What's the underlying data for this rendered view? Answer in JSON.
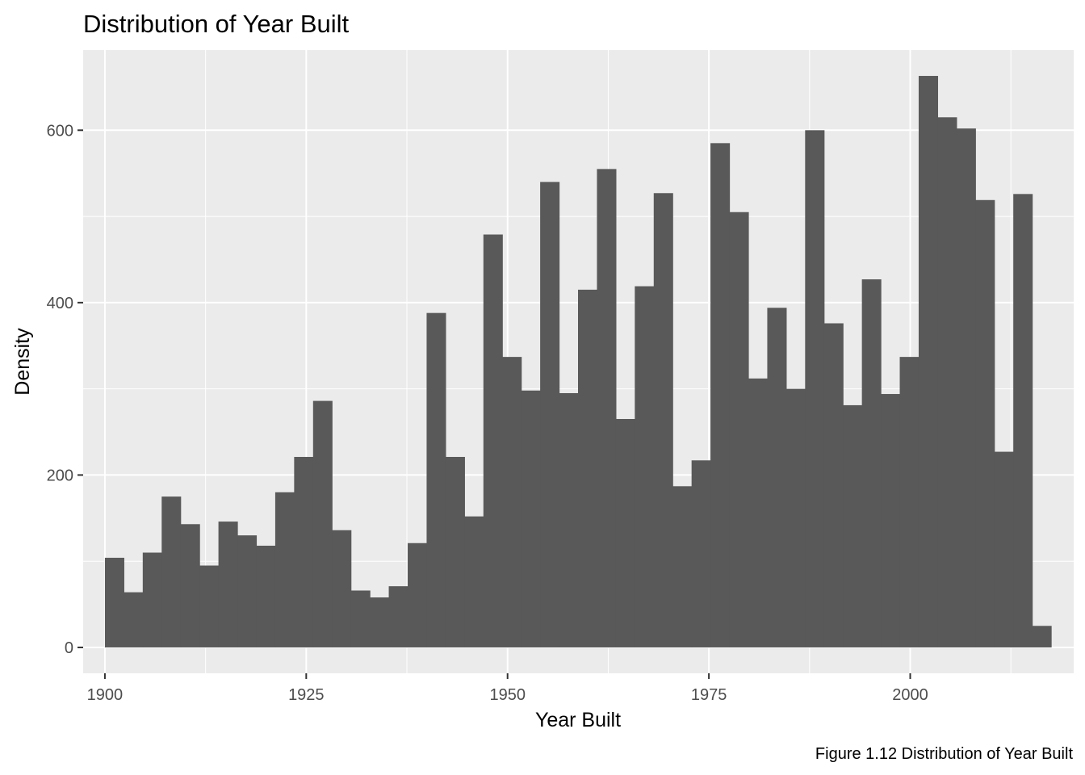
{
  "chart_data": {
    "type": "histogram",
    "title": "Distribution of Year Built",
    "xlabel": "Year Built",
    "ylabel": "Density",
    "caption": "Figure 1.12 Distribution of Year Built",
    "xlim": [
      1897.3,
      2020.3
    ],
    "ylim": [
      -30,
      693
    ],
    "x_ticks": [
      1900,
      1925,
      1950,
      1975,
      2000
    ],
    "x_tick_labels": [
      "1900",
      "1925",
      "1950",
      "1975",
      "2000"
    ],
    "y_ticks": [
      0,
      200,
      400,
      600
    ],
    "y_tick_labels": [
      "0",
      "200",
      "400",
      "600"
    ],
    "grid": true,
    "colors": {
      "panel": "#ebebeb",
      "bar": "#595959",
      "grid": "#ffffff"
    },
    "bin_width": 2.35,
    "bins_start": [
      1900.0,
      1902.35,
      1904.7,
      1907.05,
      1909.4,
      1911.75,
      1914.1,
      1916.45,
      1918.8,
      1921.15,
      1923.5,
      1925.85,
      1928.2,
      1930.55,
      1932.9,
      1935.25,
      1937.6,
      1939.95,
      1942.3,
      1944.65,
      1947.0,
      1949.35,
      1951.7,
      1954.05,
      1956.4,
      1958.75,
      1961.1,
      1963.45,
      1965.8,
      1968.15,
      1970.5,
      1972.85,
      1975.2,
      1977.55,
      1979.9,
      1982.25,
      1984.6,
      1986.95,
      1989.3,
      1991.65,
      1994.0,
      1996.35,
      1998.7,
      2001.05,
      2003.4,
      2005.75,
      2008.1,
      2010.45,
      2012.8,
      2015.15
    ],
    "values": [
      104,
      64,
      110,
      175,
      143,
      95,
      146,
      130,
      118,
      180,
      221,
      286,
      136,
      66,
      58,
      71,
      121,
      388,
      221,
      152,
      479,
      337,
      298,
      540,
      295,
      415,
      555,
      265,
      419,
      527,
      187,
      217,
      585,
      505,
      312,
      394,
      300,
      600,
      376,
      281,
      427,
      294,
      337,
      663,
      615,
      602,
      519,
      227,
      526,
      25
    ]
  }
}
